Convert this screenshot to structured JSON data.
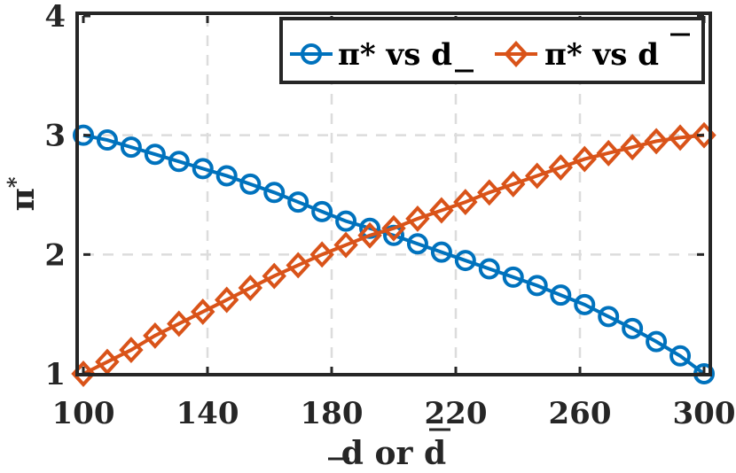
{
  "chart_data": {
    "type": "line",
    "title": "",
    "xlabel": {
      "pre": "d",
      "mid": " or ",
      "post": "d"
    },
    "ylabel": {
      "base": "π",
      "sup": "*"
    },
    "xlim": [
      100,
      300
    ],
    "ylim": [
      1,
      4
    ],
    "xticks": [
      "100",
      "140",
      "180",
      "220",
      "260",
      "300"
    ],
    "yticks": [
      "1",
      "2",
      "3",
      "4"
    ],
    "grid": true,
    "legend_position": "top-right",
    "x": [
      100,
      107.7,
      115.4,
      123.1,
      130.8,
      138.5,
      146.2,
      153.8,
      161.5,
      169.2,
      176.9,
      184.6,
      192.3,
      200,
      207.7,
      215.4,
      223.1,
      230.8,
      238.5,
      246.2,
      253.8,
      261.5,
      269.2,
      276.9,
      284.6,
      292.3,
      300
    ],
    "series": [
      {
        "name": "π* vs d (underline)",
        "legend": {
          "text": "π* vs ",
          "var": "d",
          "mark": "underline"
        },
        "marker": "circle",
        "color": "#0072BD",
        "values": [
          3.0,
          2.96,
          2.9,
          2.84,
          2.78,
          2.72,
          2.66,
          2.59,
          2.52,
          2.44,
          2.36,
          2.28,
          2.22,
          2.16,
          2.09,
          2.02,
          1.95,
          1.88,
          1.81,
          1.74,
          1.66,
          1.58,
          1.48,
          1.38,
          1.27,
          1.15,
          1.0
        ]
      },
      {
        "name": "π* vs d (overline)",
        "legend": {
          "text": "π* vs ",
          "var": "d",
          "mark": "overline"
        },
        "marker": "diamond",
        "color": "#D95319",
        "values": [
          1.0,
          1.1,
          1.2,
          1.32,
          1.42,
          1.52,
          1.62,
          1.72,
          1.82,
          1.91,
          2.0,
          2.08,
          2.16,
          2.22,
          2.3,
          2.37,
          2.44,
          2.52,
          2.59,
          2.66,
          2.73,
          2.8,
          2.85,
          2.9,
          2.95,
          2.98,
          3.0
        ]
      }
    ]
  }
}
